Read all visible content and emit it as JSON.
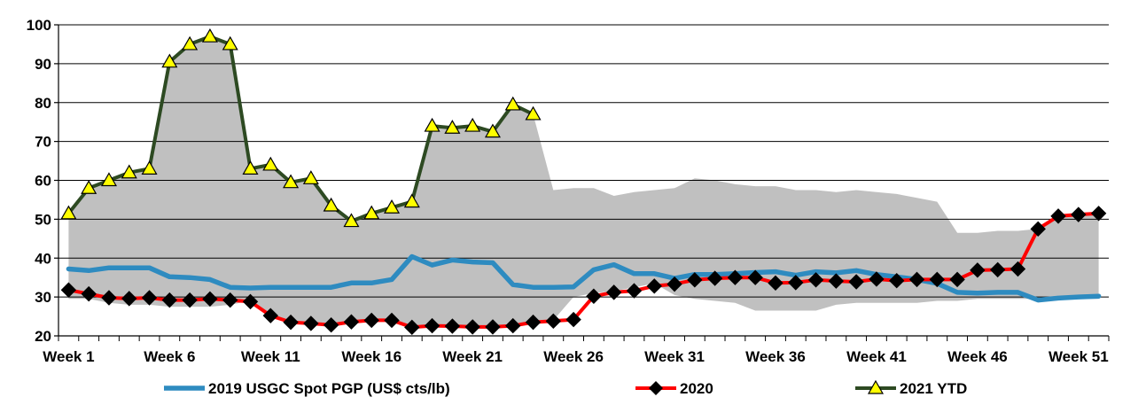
{
  "chart_data": {
    "type": "line",
    "title": "",
    "xlabel": "",
    "ylabel": "",
    "ylim": [
      20,
      100
    ],
    "yticks": [
      20,
      30,
      40,
      50,
      60,
      70,
      80,
      90,
      100
    ],
    "week_count": 52,
    "xtick_labels": [
      {
        "week": 1,
        "label": "Week 1"
      },
      {
        "week": 6,
        "label": "Week 6"
      },
      {
        "week": 11,
        "label": "Week 11"
      },
      {
        "week": 16,
        "label": "Week 16"
      },
      {
        "week": 21,
        "label": "Week 21"
      },
      {
        "week": 26,
        "label": "Week 26"
      },
      {
        "week": 31,
        "label": "Week 31"
      },
      {
        "week": 36,
        "label": "Week 36"
      },
      {
        "week": 41,
        "label": "Week 41"
      },
      {
        "week": 46,
        "label": "Week 46"
      },
      {
        "week": 51,
        "label": "Week 51"
      }
    ],
    "grid": "horizontal",
    "legend_position": "bottom",
    "range_band": {
      "color": "#c0c0c0",
      "upper": [
        51.5,
        58,
        60,
        62,
        63,
        90.5,
        95,
        97,
        95,
        63,
        64,
        59.5,
        60.5,
        53.5,
        49.5,
        51.5,
        53,
        54.5,
        74,
        73.5,
        74,
        72.5,
        79.5,
        77,
        57.5,
        58,
        58,
        56,
        57,
        57.5,
        58,
        60.5,
        60,
        59,
        58.5,
        58.5,
        57.5,
        57.5,
        57,
        57.5,
        57,
        56.5,
        55.5,
        54.5,
        46.5,
        46.5,
        47,
        47,
        47.5,
        50.5,
        51.5,
        51.5
      ],
      "lower": [
        29.5,
        29.5,
        28.5,
        28,
        28,
        27.5,
        27.5,
        27.5,
        28,
        29,
        25,
        23.5,
        23,
        22.5,
        23.5,
        23.5,
        24,
        22,
        22.5,
        22.5,
        22,
        22,
        22.5,
        23.5,
        24,
        30,
        31,
        31.5,
        32.5,
        33.5,
        30.5,
        29.5,
        29,
        28.5,
        26.5,
        26.5,
        26.5,
        26.5,
        28,
        28.5,
        28.5,
        28.5,
        28.5,
        29,
        29,
        29.5,
        29.5,
        29.5,
        29.5,
        29.5,
        29.5,
        29.5
      ]
    },
    "series": [
      {
        "name": "2019 USGC Spot PGP (US$ cts/lb)",
        "color": "#2e8bc0",
        "marker": "none",
        "values": [
          37.2,
          36.8,
          37.5,
          37.5,
          37.5,
          35.2,
          35,
          34.5,
          32.5,
          32.3,
          32.5,
          32.5,
          32.5,
          32.5,
          33.6,
          33.6,
          34.5,
          40.4,
          38.2,
          39.5,
          39,
          38.8,
          33.2,
          32.5,
          32.5,
          32.6,
          37,
          38.3,
          36,
          36,
          34.8,
          35.8,
          35.8,
          36,
          36.3,
          36.5,
          35.6,
          36.5,
          36.2,
          36.8,
          35.8,
          35.2,
          34.5,
          33.5,
          31.2,
          31,
          31.2,
          31.2,
          29.2,
          29.7,
          30,
          30.2
        ]
      },
      {
        "name": "2020",
        "color": "#ff0000",
        "marker": "diamond",
        "values": [
          31.8,
          30.8,
          29.8,
          29.6,
          29.8,
          29.2,
          29.2,
          29.5,
          29.2,
          28.8,
          25.2,
          23.5,
          23.2,
          22.8,
          23.6,
          24,
          24,
          22.2,
          22.6,
          22.5,
          22.3,
          22.3,
          22.6,
          23.5,
          23.8,
          24.2,
          30.2,
          31.2,
          31.6,
          32.8,
          33.3,
          34.4,
          34.8,
          35,
          35,
          33.6,
          33.7,
          34.4,
          34.1,
          33.9,
          34.6,
          34.2,
          34.5,
          34.5,
          34.5,
          36.9,
          37,
          37.2,
          47.5,
          50.8,
          51.2,
          51.5
        ]
      },
      {
        "name": "2021 YTD",
        "color": "#2d4a22",
        "marker": "triangle",
        "marker_fill": "#ffff00",
        "values": [
          51.5,
          58,
          60,
          62,
          63,
          90.5,
          95,
          97,
          95,
          63,
          64,
          59.5,
          60.5,
          53.5,
          49.5,
          51.5,
          53,
          54.5,
          74,
          73.5,
          74,
          72.5,
          79.5,
          77
        ]
      }
    ]
  }
}
